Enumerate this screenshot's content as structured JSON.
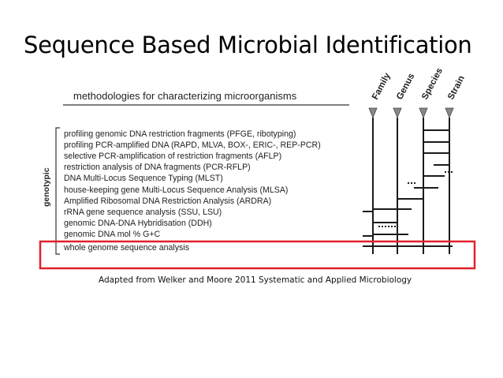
{
  "slide": {
    "title": "Sequence Based Microbial Identification",
    "caption": "Adapted from Welker and Moore 2011 Systematic and Applied Microbiology"
  },
  "diagram": {
    "heading": "methodologies for characterizing microorganisms",
    "side_label": "genotypic",
    "ranks": [
      "Family",
      "Genus",
      "Species",
      "Strain"
    ],
    "methods": [
      "profiling genomic DNA restriction fragments (PFGE, ribotyping)",
      "profiling PCR-amplified DNA (RAPD, MLVA, BOX-, ERIC-, REP-PCR)",
      "selective PCR-amplification of restriction fragments (AFLP)",
      "restriction analysis of DNA fragments (PCR-RFLP)",
      "DNA Multi-Locus Sequence Typing (MLST)",
      "house-keeping gene Multi-Locus Sequence Analysis (MLSA)",
      "Amplified Ribosomal DNA Restriction Analysis (ARDRA)",
      "rRNA gene sequence analysis (SSU, LSU)",
      "genomic DNA-DNA Hybridisation (DDH)",
      "genomic DNA mol % G+C",
      "whole genome sequence analysis"
    ],
    "highlighted_method": "whole genome sequence analysis",
    "highlight_color": "#e0202a",
    "line_color": "#1a1a1a"
  }
}
